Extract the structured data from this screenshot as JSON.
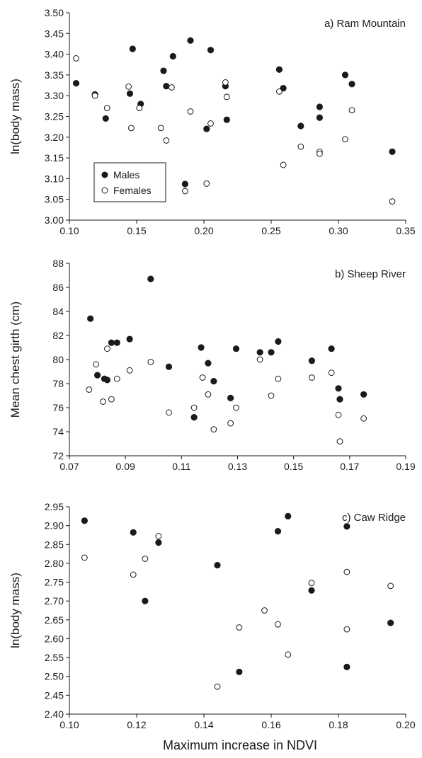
{
  "figure": {
    "xlabel": "Maximum increase in NDVI"
  },
  "legend": {
    "males": "Males",
    "females": "Females"
  },
  "chart_data": [
    {
      "type": "scatter",
      "title": "a) Ram Mountain",
      "ylabel": "ln(body mass)",
      "xlabel": "",
      "xlim": [
        0.1,
        0.35
      ],
      "ylim": [
        3.0,
        3.5
      ],
      "xticks": [
        "0.10",
        "0.15",
        "0.20",
        "0.25",
        "0.30",
        "0.35"
      ],
      "yticks": [
        "3.00",
        "3.05",
        "3.10",
        "3.15",
        "3.20",
        "3.25",
        "3.30",
        "3.35",
        "3.40",
        "3.45",
        "3.50"
      ],
      "grid": false,
      "legend_position": "bottom-left",
      "series": [
        {
          "name": "Males",
          "marker": "filled-circle",
          "x": [
            0.105,
            0.119,
            0.127,
            0.145,
            0.147,
            0.153,
            0.17,
            0.172,
            0.177,
            0.186,
            0.19,
            0.202,
            0.205,
            0.216,
            0.217,
            0.256,
            0.259,
            0.272,
            0.286,
            0.286,
            0.305,
            0.31,
            0.34
          ],
          "y": [
            3.33,
            3.303,
            3.245,
            3.305,
            3.413,
            3.28,
            3.36,
            3.323,
            3.395,
            3.087,
            3.433,
            3.22,
            3.41,
            3.323,
            3.242,
            3.363,
            3.318,
            3.227,
            3.273,
            3.247,
            3.35,
            3.328,
            3.165
          ]
        },
        {
          "name": "Females",
          "marker": "open-circle",
          "x": [
            0.105,
            0.119,
            0.128,
            0.144,
            0.146,
            0.152,
            0.168,
            0.172,
            0.176,
            0.186,
            0.19,
            0.202,
            0.205,
            0.216,
            0.217,
            0.256,
            0.259,
            0.272,
            0.286,
            0.286,
            0.305,
            0.31,
            0.34
          ],
          "y": [
            3.39,
            3.3,
            3.27,
            3.322,
            3.222,
            3.27,
            3.222,
            3.192,
            3.32,
            3.07,
            3.262,
            3.088,
            3.233,
            3.332,
            3.297,
            3.31,
            3.133,
            3.177,
            3.165,
            3.16,
            3.195,
            3.265,
            3.045
          ]
        }
      ]
    },
    {
      "type": "scatter",
      "title": "b) Sheep River",
      "ylabel": "Mean chest girth (cm)",
      "xlabel": "",
      "xlim": [
        0.07,
        0.19
      ],
      "ylim": [
        72,
        88
      ],
      "xticks": [
        "0.07",
        "0.09",
        "0.11",
        "0.13",
        "0.15",
        "0.17",
        "0.19"
      ],
      "yticks": [
        "72",
        "74",
        "76",
        "78",
        "80",
        "82",
        "84",
        "86",
        "88"
      ],
      "grid": false,
      "series": [
        {
          "name": "Males",
          "marker": "filled-circle",
          "x": [
            0.0775,
            0.08,
            0.0825,
            0.0835,
            0.085,
            0.087,
            0.0915,
            0.099,
            0.1055,
            0.1145,
            0.117,
            0.1195,
            0.1215,
            0.1275,
            0.1295,
            0.138,
            0.142,
            0.1445,
            0.1565,
            0.1635,
            0.166,
            0.1665,
            0.175
          ],
          "y": [
            83.4,
            78.7,
            78.4,
            78.3,
            81.4,
            81.4,
            81.7,
            86.7,
            79.4,
            75.2,
            81.0,
            79.7,
            78.2,
            76.8,
            80.9,
            80.6,
            80.6,
            81.5,
            79.9,
            80.9,
            77.6,
            76.7,
            77.1
          ]
        },
        {
          "name": "Females",
          "marker": "open-circle",
          "x": [
            0.077,
            0.0795,
            0.082,
            0.0835,
            0.085,
            0.087,
            0.0915,
            0.099,
            0.1055,
            0.1145,
            0.1175,
            0.1195,
            0.1215,
            0.1275,
            0.1295,
            0.138,
            0.142,
            0.1445,
            0.1565,
            0.1635,
            0.166,
            0.1665,
            0.175
          ],
          "y": [
            77.5,
            79.6,
            76.5,
            80.9,
            76.7,
            78.4,
            79.1,
            79.8,
            75.6,
            76.0,
            78.5,
            77.1,
            74.2,
            74.7,
            76.0,
            80.0,
            77.0,
            78.4,
            78.5,
            78.9,
            75.4,
            73.2,
            75.1
          ]
        }
      ]
    },
    {
      "type": "scatter",
      "title": "c) Caw Ridge",
      "ylabel": "ln(body mass)",
      "xlabel": "Maximum increase in NDVI",
      "xlim": [
        0.1,
        0.2
      ],
      "ylim": [
        2.4,
        2.95
      ],
      "xticks": [
        "0.10",
        "0.12",
        "0.14",
        "0.16",
        "0.18",
        "0.20"
      ],
      "yticks": [
        "2.40",
        "2.45",
        "2.50",
        "2.55",
        "2.60",
        "2.65",
        "2.70",
        "2.75",
        "2.80",
        "2.85",
        "2.90",
        "2.95"
      ],
      "grid": false,
      "series": [
        {
          "name": "Males",
          "marker": "filled-circle",
          "x": [
            0.1045,
            0.119,
            0.1225,
            0.1265,
            0.144,
            0.1505,
            0.162,
            0.165,
            0.172,
            0.1825,
            0.1825,
            0.1955
          ],
          "y": [
            2.913,
            2.882,
            2.7,
            2.855,
            2.795,
            2.512,
            2.885,
            2.925,
            2.728,
            2.898,
            2.525,
            2.642
          ]
        },
        {
          "name": "Females",
          "marker": "open-circle",
          "x": [
            0.1045,
            0.119,
            0.1225,
            0.1265,
            0.144,
            0.1505,
            0.158,
            0.162,
            0.165,
            0.172,
            0.1825,
            0.1825,
            0.1955
          ],
          "y": [
            2.815,
            2.77,
            2.812,
            2.872,
            2.473,
            2.63,
            2.675,
            2.638,
            2.558,
            2.748,
            2.777,
            2.625,
            2.74
          ]
        }
      ]
    }
  ]
}
